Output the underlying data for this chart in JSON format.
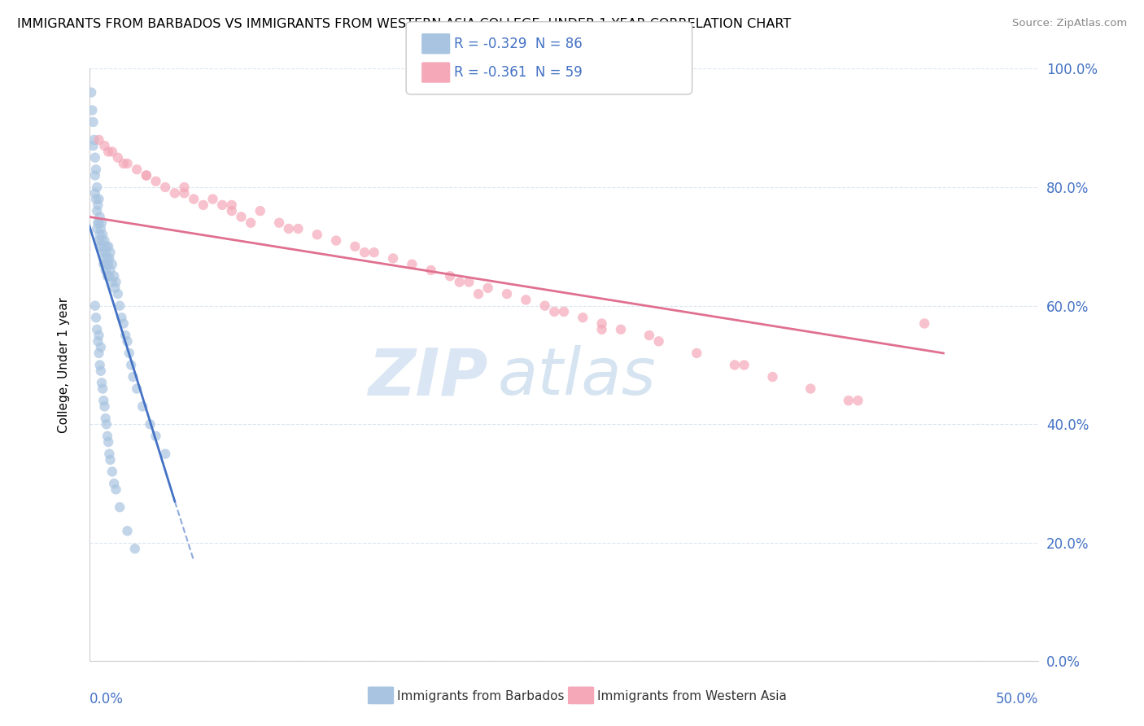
{
  "title": "IMMIGRANTS FROM BARBADOS VS IMMIGRANTS FROM WESTERN ASIA COLLEGE, UNDER 1 YEAR CORRELATION CHART",
  "source": "Source: ZipAtlas.com",
  "legend_blue_label": "R = -0.329  N = 86",
  "legend_pink_label": "R = -0.361  N = 59",
  "legend_blue_bottom": "Immigrants from Barbados",
  "legend_pink_bottom": "Immigrants from Western Asia",
  "blue_color": "#a8c4e0",
  "pink_color": "#f4a8b8",
  "blue_line_color": "#4472c4",
  "pink_line_color": "#e07090",
  "watermark_zip": "ZIP",
  "watermark_atlas": "atlas",
  "ylabel": "College, Under 1 year",
  "background_color": "#ffffff",
  "grid_color": "#d8e4f0",
  "tick_label_color": "#4472c4",
  "xmin": 0.0,
  "xmax": 50.0,
  "ymin": 0.0,
  "ymax": 100.0,
  "blue_scatter_x": [
    0.1,
    0.15,
    0.2,
    0.2,
    0.25,
    0.3,
    0.3,
    0.3,
    0.35,
    0.35,
    0.4,
    0.4,
    0.4,
    0.45,
    0.45,
    0.5,
    0.5,
    0.5,
    0.55,
    0.55,
    0.6,
    0.6,
    0.65,
    0.65,
    0.7,
    0.7,
    0.75,
    0.75,
    0.8,
    0.8,
    0.85,
    0.85,
    0.9,
    0.9,
    0.95,
    0.95,
    1.0,
    1.0,
    1.05,
    1.05,
    1.1,
    1.1,
    1.2,
    1.2,
    1.3,
    1.35,
    1.4,
    1.5,
    1.6,
    1.7,
    1.8,
    1.9,
    2.0,
    2.1,
    2.2,
    2.3,
    2.5,
    2.8,
    3.2,
    3.5,
    4.0,
    0.3,
    0.35,
    0.4,
    0.45,
    0.5,
    0.55,
    0.6,
    0.65,
    0.7,
    0.75,
    0.8,
    0.85,
    0.9,
    0.95,
    1.0,
    1.05,
    1.1,
    1.2,
    1.3,
    1.4,
    1.6,
    2.0,
    2.4,
    0.5,
    0.6
  ],
  "blue_scatter_y": [
    96,
    93,
    91,
    87,
    88,
    85,
    82,
    79,
    83,
    78,
    80,
    76,
    73,
    77,
    74,
    78,
    74,
    71,
    75,
    72,
    73,
    70,
    74,
    71,
    72,
    69,
    70,
    67,
    71,
    68,
    69,
    66,
    70,
    67,
    68,
    65,
    70,
    67,
    68,
    65,
    69,
    66,
    67,
    64,
    65,
    63,
    64,
    62,
    60,
    58,
    57,
    55,
    54,
    52,
    50,
    48,
    46,
    43,
    40,
    38,
    35,
    60,
    58,
    56,
    54,
    52,
    50,
    49,
    47,
    46,
    44,
    43,
    41,
    40,
    38,
    37,
    35,
    34,
    32,
    30,
    29,
    26,
    22,
    19,
    55,
    53
  ],
  "pink_scatter_x": [
    0.5,
    0.8,
    1.2,
    1.5,
    2.0,
    2.5,
    3.0,
    3.5,
    4.0,
    4.5,
    5.0,
    5.5,
    6.0,
    6.5,
    7.0,
    7.5,
    8.0,
    9.0,
    10.0,
    11.0,
    12.0,
    13.0,
    14.0,
    15.0,
    16.0,
    17.0,
    18.0,
    19.0,
    20.0,
    21.0,
    22.0,
    23.0,
    24.0,
    25.0,
    26.0,
    27.0,
    28.0,
    30.0,
    32.0,
    34.0,
    36.0,
    38.0,
    40.0,
    1.0,
    1.8,
    3.0,
    5.0,
    7.5,
    10.5,
    14.5,
    19.5,
    24.5,
    29.5,
    34.5,
    8.5,
    20.5,
    27.0,
    40.5,
    44.0
  ],
  "pink_scatter_y": [
    88,
    87,
    86,
    85,
    84,
    83,
    82,
    81,
    80,
    79,
    80,
    78,
    77,
    78,
    77,
    76,
    75,
    76,
    74,
    73,
    72,
    71,
    70,
    69,
    68,
    67,
    66,
    65,
    64,
    63,
    62,
    61,
    60,
    59,
    58,
    57,
    56,
    54,
    52,
    50,
    48,
    46,
    44,
    86,
    84,
    82,
    79,
    77,
    73,
    69,
    64,
    59,
    55,
    50,
    74,
    62,
    56,
    44,
    57
  ],
  "blue_trend_x0": 0.0,
  "blue_trend_y0": 73.5,
  "blue_trend_x1": 4.5,
  "blue_trend_y1": 27.0,
  "blue_trend_dashed_x0": 4.5,
  "blue_trend_dashed_y0": 27.0,
  "blue_trend_dashed_x1": 5.5,
  "blue_trend_dashed_y1": 17.0,
  "pink_trend_x0": 0.0,
  "pink_trend_y0": 75.0,
  "pink_trend_x1": 45.0,
  "pink_trend_y1": 52.0
}
